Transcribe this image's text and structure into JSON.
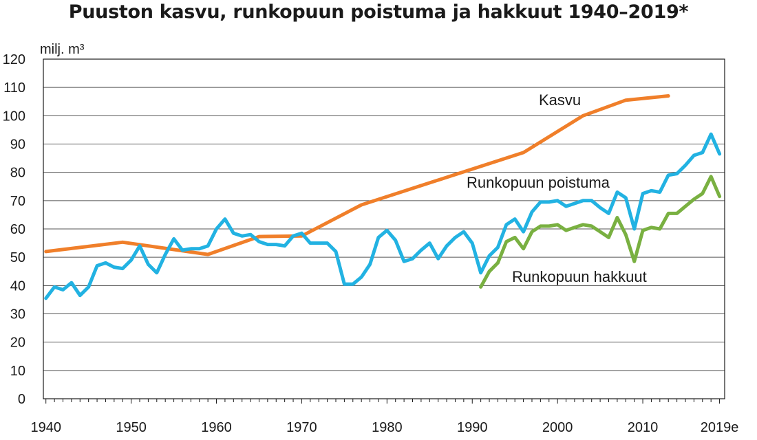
{
  "title": "Puuston kasvu, runkopuun poistuma ja hakkuut 1940–2019*",
  "chart_data": {
    "type": "line",
    "title": "Puuston kasvu, runkopuun poistuma ja hakkuut 1940–2019*",
    "ylabel": "milj. m³",
    "xlabel": "",
    "xlim": [
      1940,
      2019
    ],
    "ylim": [
      0,
      120
    ],
    "y_ticks": [
      0,
      10,
      20,
      30,
      40,
      50,
      60,
      70,
      80,
      90,
      100,
      110,
      120
    ],
    "x_tick_labels": [
      {
        "x": 1940,
        "label": "1940"
      },
      {
        "x": 1950,
        "label": "1950"
      },
      {
        "x": 1960,
        "label": "1960"
      },
      {
        "x": 1970,
        "label": "1970"
      },
      {
        "x": 1980,
        "label": "1980"
      },
      {
        "x": 1990,
        "label": "1990"
      },
      {
        "x": 2000,
        "label": "2000"
      },
      {
        "x": 2010,
        "label": "2010"
      },
      {
        "x": 2019,
        "label": "2019e"
      }
    ],
    "grid": "horizontal",
    "series": [
      {
        "name": "Kasvu",
        "color": "#f07f2a",
        "x": [
          1940,
          1949,
          1959,
          1965,
          1970,
          1977,
          1996,
          2003,
          2008,
          2013
        ],
        "values": [
          52,
          55.3,
          51,
          57.3,
          57.5,
          68.5,
          87,
          100,
          105.5,
          107
        ]
      },
      {
        "name": "Runkopuun poistuma",
        "color": "#22b2e2",
        "x": [
          1940,
          1941,
          1942,
          1943,
          1944,
          1945,
          1946,
          1947,
          1948,
          1949,
          1950,
          1951,
          1952,
          1953,
          1954,
          1955,
          1956,
          1957,
          1958,
          1959,
          1960,
          1961,
          1962,
          1963,
          1964,
          1965,
          1966,
          1967,
          1968,
          1969,
          1970,
          1971,
          1972,
          1973,
          1974,
          1975,
          1976,
          1977,
          1978,
          1979,
          1980,
          1981,
          1982,
          1983,
          1984,
          1985,
          1986,
          1987,
          1988,
          1989,
          1990,
          1991,
          1992,
          1993,
          1994,
          1995,
          1996,
          1997,
          1998,
          1999,
          2000,
          2001,
          2002,
          2003,
          2004,
          2005,
          2006,
          2007,
          2008,
          2009,
          2010,
          2011,
          2012,
          2013,
          2014,
          2015,
          2016,
          2017,
          2018,
          2019
        ],
        "values": [
          35.5,
          39.5,
          38.5,
          41,
          36.5,
          39.5,
          47,
          48,
          46.5,
          46,
          49,
          54,
          47.5,
          44.5,
          51,
          56.5,
          52.5,
          53,
          53,
          54,
          60,
          63.5,
          58.5,
          57.5,
          58,
          55.5,
          54.5,
          54.5,
          54,
          57.5,
          58.5,
          55,
          55,
          55,
          52,
          40.5,
          40.5,
          43,
          47.5,
          57,
          59.5,
          56,
          48.5,
          49.5,
          52.5,
          55,
          49.5,
          54,
          57,
          59,
          55,
          44.5,
          50.5,
          53.5,
          61.5,
          63.5,
          59,
          66,
          69.5,
          69.5,
          70,
          68,
          69,
          70,
          70,
          67.5,
          65.5,
          73,
          71,
          60,
          72.5,
          73.5,
          73,
          79,
          79.5,
          82.5,
          86,
          87,
          93.5,
          86.5
        ]
      },
      {
        "name": "Runkopuun hakkuut",
        "color": "#79b041",
        "x": [
          1991,
          1992,
          1993,
          1994,
          1995,
          1996,
          1997,
          1998,
          1999,
          2000,
          2001,
          2002,
          2003,
          2004,
          2005,
          2006,
          2007,
          2008,
          2009,
          2010,
          2011,
          2012,
          2013,
          2014,
          2015,
          2016,
          2017,
          2018,
          2019
        ],
        "values": [
          39.5,
          45,
          48,
          55.5,
          57,
          53,
          59,
          61,
          61,
          61.5,
          59.5,
          60.5,
          61.5,
          61,
          59,
          57,
          64,
          58,
          48.5,
          59.5,
          60.5,
          60,
          65.5,
          65.5,
          68,
          70.5,
          72.5,
          78.5,
          71.5
        ]
      }
    ],
    "annotations": [
      {
        "series": "Kasvu",
        "text": "Kasvu"
      },
      {
        "series": "Runkopuun poistuma",
        "text": "Runkopuun poistuma"
      },
      {
        "series": "Runkopuun hakkuut",
        "text": "Runkopuun hakkuut"
      }
    ]
  }
}
